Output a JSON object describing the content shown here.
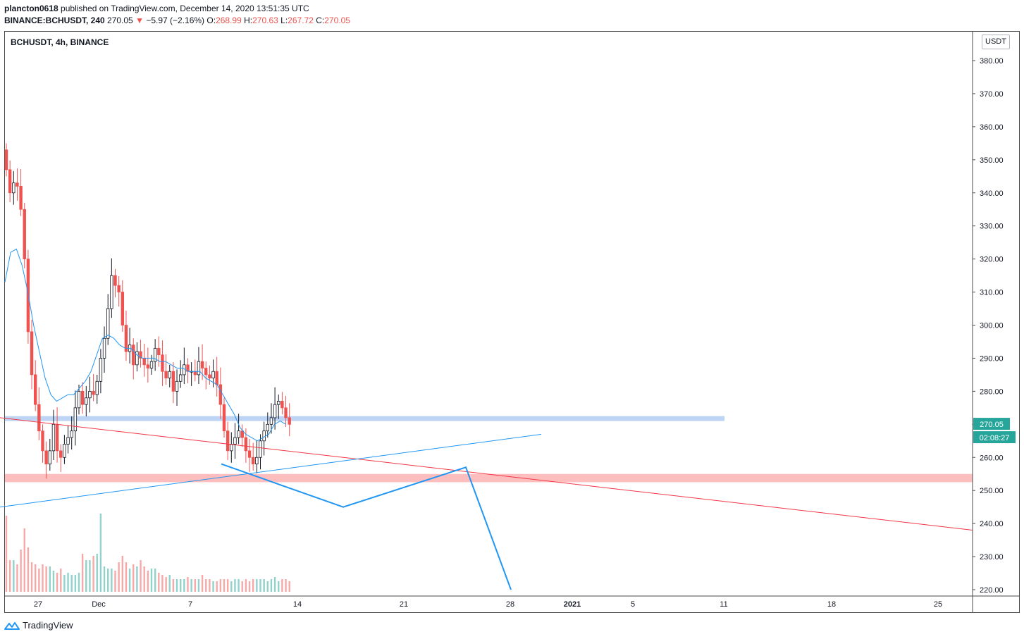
{
  "header": {
    "author": "plancton0618",
    "published_text": "published on TradingView.com, December 14, 2020 13:51:35 UTC",
    "symbol_line": "BINANCE:BCHUSDT, 240",
    "last": "270.05",
    "change_arrow": "▼",
    "change": "−5.97 (−2.16%)",
    "o_label": "O:",
    "o": "268.99",
    "h_label": "H:",
    "h": "270.63",
    "l_label": "L:",
    "l": "267.72",
    "c_label": "C:",
    "c": "270.05"
  },
  "chart_title": "BCHUSDT, 4h, BINANCE",
  "currency_tag": "USDT",
  "price_badge": "270.05",
  "countdown_badge": "02:08:27",
  "footer": {
    "brand": "TradingView"
  },
  "colors": {
    "up": "#131722",
    "down": "#ef5350",
    "ma": "#2196f3",
    "resistance_line": "#f23645",
    "support_band": "#a8c6f0",
    "demand_band": "#ffb3b3",
    "badge": "#26a69a"
  },
  "chart_data": {
    "type": "candlestick",
    "yticks": [
      "380.00",
      "370.00",
      "360.00",
      "350.00",
      "340.00",
      "330.00",
      "320.00",
      "310.00",
      "300.00",
      "290.00",
      "280.00",
      "270.00",
      "260.00",
      "250.00",
      "240.00",
      "230.00",
      "220.00"
    ],
    "ylim": [
      220,
      380
    ],
    "xticks": [
      "27",
      "Dec",
      "7",
      "14",
      "21",
      "28",
      "2021",
      "5",
      "11",
      "18",
      "25"
    ],
    "close_path": [
      347,
      340,
      343,
      342,
      335,
      320,
      298,
      285,
      276,
      268,
      262,
      258,
      262,
      270,
      262,
      260,
      264,
      266,
      268,
      275,
      280,
      276,
      278,
      280,
      279,
      283,
      290,
      296,
      305,
      315,
      312,
      310,
      300,
      292,
      294,
      288,
      292,
      290,
      288,
      287,
      289,
      293,
      291,
      286,
      284,
      286,
      280,
      283,
      285,
      288,
      286,
      286,
      285,
      289,
      287,
      285,
      284,
      286,
      282,
      276,
      268,
      262,
      264,
      266,
      268,
      266,
      262,
      260,
      258,
      260,
      265,
      268,
      270,
      272,
      276,
      277,
      275,
      272,
      270
    ],
    "ma_path": [
      313,
      322,
      323,
      318,
      310,
      300,
      292,
      284,
      279,
      277,
      278,
      279,
      279,
      281,
      283,
      286,
      291,
      296,
      297,
      296,
      294,
      293,
      293,
      291,
      290,
      290,
      290,
      289,
      289,
      288,
      287,
      287,
      286,
      286,
      286,
      284,
      283,
      282,
      279,
      276,
      273,
      269,
      267,
      266,
      265,
      266,
      267,
      270,
      271,
      270
    ],
    "volumes": [
      36,
      15,
      15,
      13,
      20,
      30,
      21,
      14,
      13,
      11,
      13,
      12,
      12,
      10,
      9,
      11,
      8,
      9,
      8,
      8,
      9,
      18,
      15,
      15,
      17,
      18,
      37,
      12,
      11,
      11,
      10,
      14,
      17,
      14,
      11,
      13,
      12,
      15,
      12,
      10,
      11,
      11,
      9,
      8,
      7,
      8,
      6,
      6,
      6,
      6,
      7,
      6,
      6,
      6,
      8,
      6,
      6,
      5,
      5,
      6,
      6,
      6,
      5,
      6,
      6,
      5,
      6,
      5,
      6,
      6,
      6,
      6,
      5,
      6,
      7,
      5,
      6,
      6,
      5
    ],
    "series": [
      {
        "name": "",
        "points": [
          [
            0,
            272
          ],
          [
            1380,
            238
          ]
        ]
      },
      {
        "name": "",
        "points": [
          [
            0,
            245
          ],
          [
            768,
            267
          ]
        ]
      },
      {
        "name": "",
        "points": [
          [
            314,
            258
          ],
          [
            487,
            245
          ],
          [
            661,
            257
          ],
          [
            725,
            220
          ]
        ]
      }
    ],
    "bands": [
      {
        "low": 271,
        "high": 272.5,
        "x_end": 1028
      },
      {
        "low": 252.5,
        "high": 255
      }
    ],
    "current_price": 270.05
  }
}
